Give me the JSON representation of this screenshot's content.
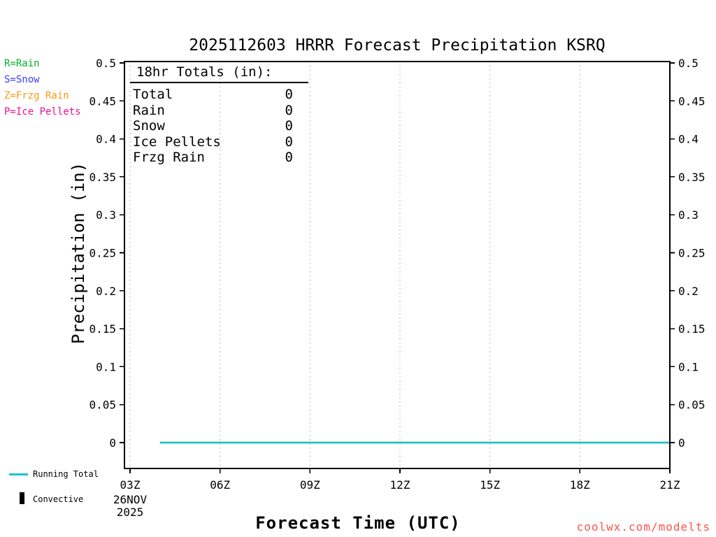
{
  "chart_data": {
    "type": "line",
    "title": "2025112603 HRRR Forecast Precipitation KSRQ",
    "xlabel": "Forecast Time (UTC)",
    "ylabel": "Precipitation (in)",
    "ylim": [
      0,
      0.5
    ],
    "ytick_step": 0.05,
    "y_ticks": [
      {
        "v": 0,
        "label": "0"
      },
      {
        "v": 0.05,
        "label": "0.05"
      },
      {
        "v": 0.1,
        "label": "0.1"
      },
      {
        "v": 0.15,
        "label": "0.15"
      },
      {
        "v": 0.2,
        "label": "0.2"
      },
      {
        "v": 0.25,
        "label": "0.25"
      },
      {
        "v": 0.3,
        "label": "0.3"
      },
      {
        "v": 0.35,
        "label": "0.35"
      },
      {
        "v": 0.4,
        "label": "0.4"
      },
      {
        "v": 0.45,
        "label": "0.45"
      },
      {
        "v": 0.5,
        "label": "0.5"
      }
    ],
    "x_range_hours": [
      3,
      21
    ],
    "x_ticks": [
      {
        "h": 3,
        "label": "03Z"
      },
      {
        "h": 6,
        "label": "06Z"
      },
      {
        "h": 9,
        "label": "09Z"
      },
      {
        "h": 12,
        "label": "12Z"
      },
      {
        "h": 15,
        "label": "15Z"
      },
      {
        "h": 18,
        "label": "18Z"
      },
      {
        "h": 21,
        "label": "21Z"
      }
    ],
    "x_axis_date": [
      "26NOV",
      "2025"
    ],
    "grid": "vertical-dotted",
    "grid_color": "#b5b5b5",
    "series": [
      {
        "name": "Convective",
        "color": "#000000",
        "style": "bar",
        "x": [
          4,
          5,
          6,
          7,
          8,
          9,
          10,
          11,
          12,
          13,
          14,
          15,
          16,
          17,
          18,
          19,
          20,
          21
        ],
        "values": [
          0,
          0,
          0,
          0,
          0,
          0,
          0,
          0,
          0,
          0,
          0,
          0,
          0,
          0,
          0,
          0,
          0,
          0
        ]
      },
      {
        "name": "Running Total",
        "color": "#0fc6cc",
        "style": "line",
        "x": [
          4,
          5,
          6,
          7,
          8,
          9,
          10,
          11,
          12,
          13,
          14,
          15,
          16,
          17,
          18,
          19,
          20,
          21
        ],
        "values": [
          0,
          0,
          0,
          0,
          0,
          0,
          0,
          0,
          0,
          0,
          0,
          0,
          0,
          0,
          0,
          0,
          0,
          0
        ]
      }
    ]
  },
  "type_legend": {
    "items": [
      {
        "label": "R=Rain",
        "color": "#00b428"
      },
      {
        "label": "S=Snow",
        "color": "#3a3cff"
      },
      {
        "label": "Z=Frzg Rain",
        "color": "#ff9712"
      },
      {
        "label": "P=Ice Pellets",
        "color": "#ed0e97"
      }
    ]
  },
  "totals_box": {
    "heading": "18hr Totals (in):",
    "rows": [
      {
        "label": "Total",
        "value": "0"
      },
      {
        "label": "Rain",
        "value": "0"
      },
      {
        "label": "Snow",
        "value": "0"
      },
      {
        "label": "Ice Pellets",
        "value": "0"
      },
      {
        "label": "Frzg Rain",
        "value": "0"
      }
    ]
  },
  "watermark": {
    "text": "coolwx.com/modelts",
    "color": "#f9534d"
  }
}
